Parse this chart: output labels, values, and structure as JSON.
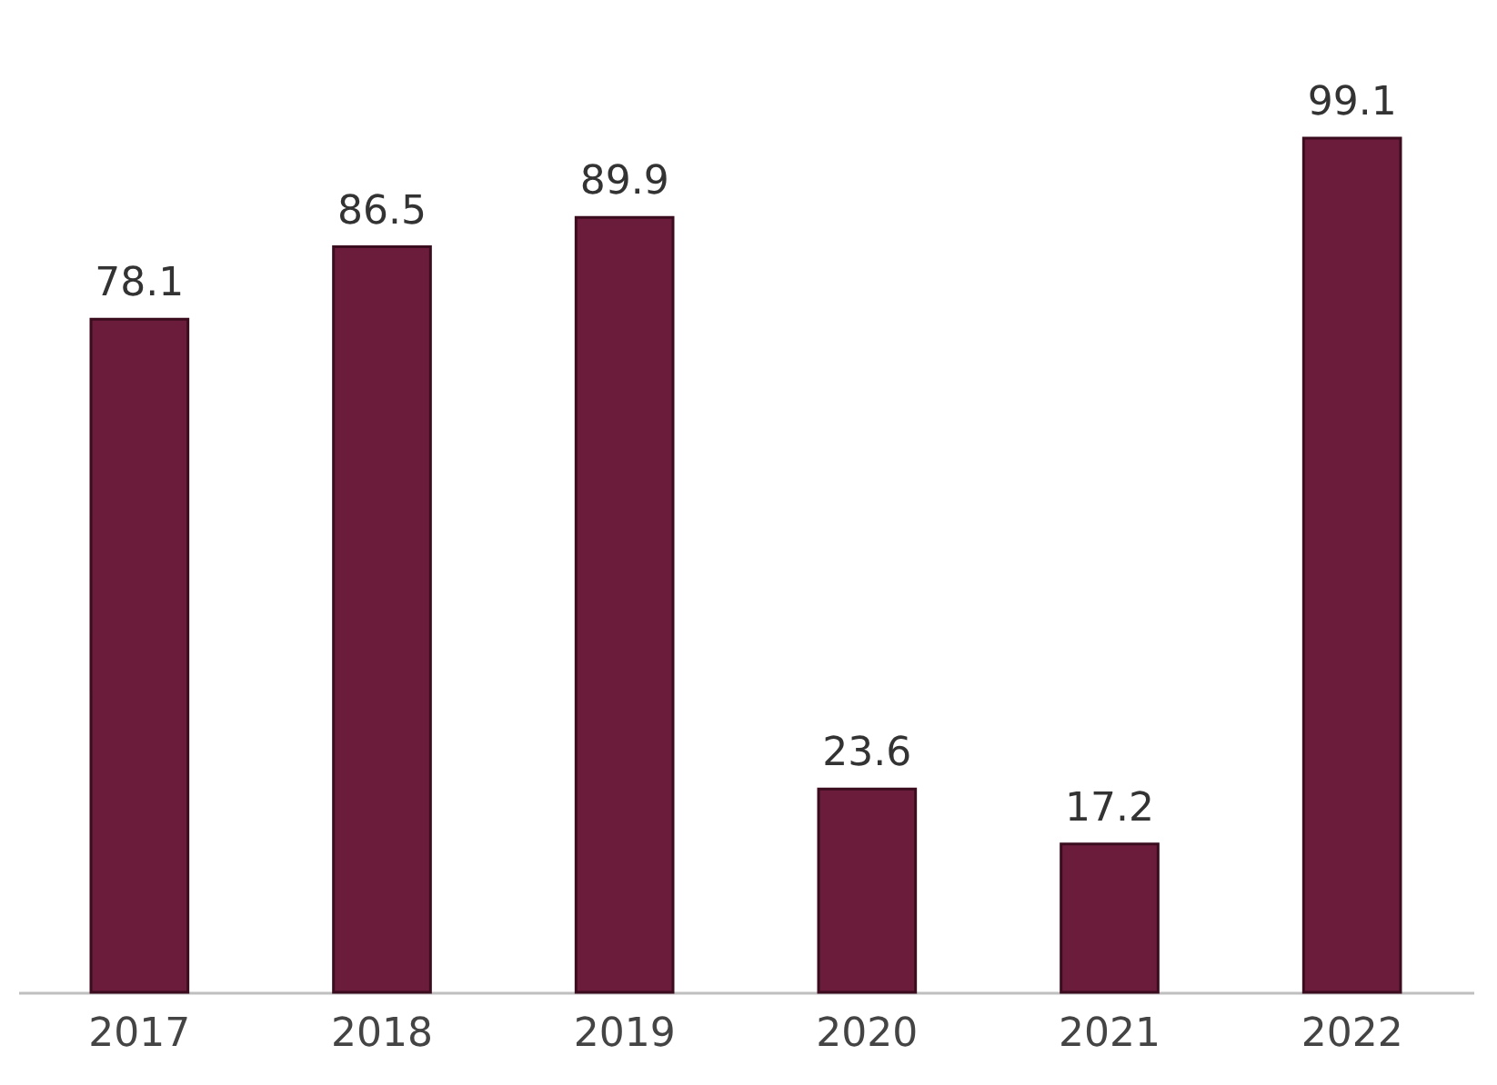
{
  "chart_data": {
    "type": "bar",
    "categories": [
      "2017",
      "2018",
      "2019",
      "2020",
      "2021",
      "2022"
    ],
    "values": [
      78.1,
      86.5,
      89.9,
      23.6,
      17.2,
      99.1
    ],
    "color": "#6b1c3b",
    "data_labels": true
  }
}
